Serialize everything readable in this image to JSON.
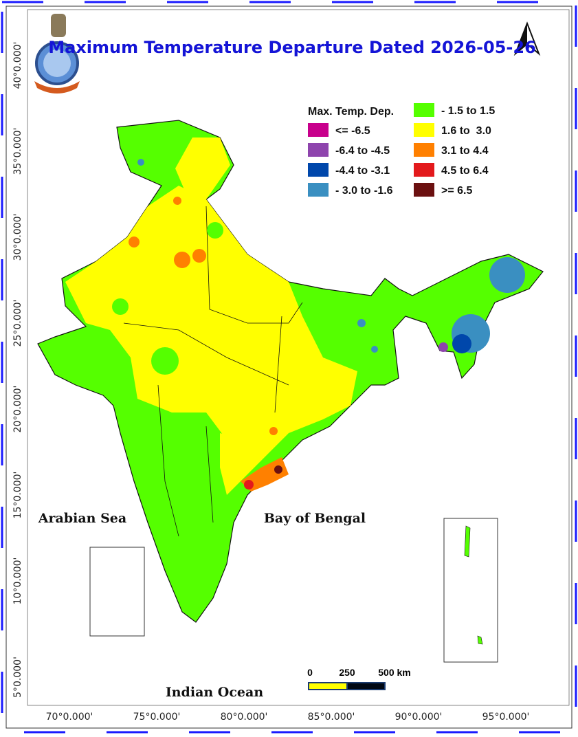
{
  "title": "Maximum Temperature Departure Dated 2026-05-26",
  "legend": {
    "title": "Max. Temp. Dep.",
    "items": [
      {
        "label": "<= -6.5",
        "color": "#c8008c"
      },
      {
        "label": "-6.4 to -4.5",
        "color": "#8e44ad"
      },
      {
        "label": "-4.4 to -3.1",
        "color": "#0047ab"
      },
      {
        "label": "- 3.0 to -1.6",
        "color": "#3a8fc1"
      },
      {
        "label": "- 1.5 to 1.5",
        "color": "#55ff00"
      },
      {
        "label": "1.6 to  3.0",
        "color": "#ffff00"
      },
      {
        "label": "3.1 to 4.4",
        "color": "#ff8000"
      },
      {
        "label": "4.5 to 6.4",
        "color": "#e31a1c"
      },
      {
        "label": ">= 6.5",
        "color": "#6b1010"
      }
    ]
  },
  "labels": [
    "Arabian Sea",
    "Bay of Bengal",
    "Indian Ocean"
  ],
  "latitude_labels": [
    "40°0.000'",
    "35°0.000'",
    "30°0.000'",
    "25°0.000'",
    "20°0.000'",
    "15°0.000'",
    "10°0.000'",
    "5°0.000'"
  ],
  "longitude_labels": [
    "70°0.000'",
    "75°0.000'",
    "80°0.000'",
    "85°0.000'",
    "90°0.000'",
    "95°0.000'"
  ],
  "scale_bar": {
    "labels": [
      "0",
      "250",
      "500 km"
    ]
  }
}
